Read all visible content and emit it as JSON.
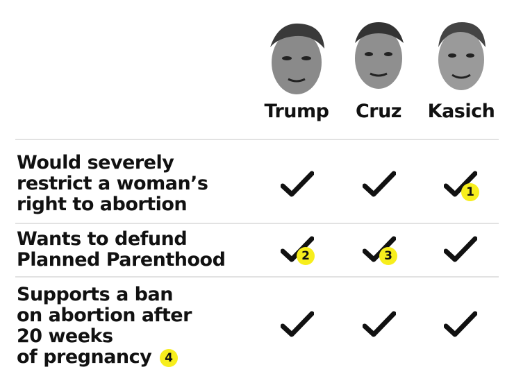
{
  "candidates": [
    {
      "name": "Trump"
    },
    {
      "name": "Cruz"
    },
    {
      "name": "Kasich"
    }
  ],
  "rows": [
    {
      "lines": [
        "Would severely",
        "restrict a woman’s",
        "right to abortion"
      ],
      "checks": [
        {
          "note": ""
        },
        {
          "note": ""
        },
        {
          "note": "1"
        }
      ]
    },
    {
      "lines": [
        "Wants to defund",
        "Planned Parenthood"
      ],
      "checks": [
        {
          "note": "2"
        },
        {
          "note": "3"
        },
        {
          "note": ""
        }
      ]
    },
    {
      "lines": [
        "Supports a ban",
        "on abortion after",
        "20 weeks",
        "of pregnancy"
      ],
      "label_note": "4",
      "checks": [
        {
          "note": ""
        },
        {
          "note": ""
        },
        {
          "note": ""
        }
      ]
    }
  ],
  "colors": {
    "check": "#111111",
    "note_badge": "#f7ee1c",
    "rule": "#e2e2e2"
  },
  "icons": {
    "face": "candidate-face-icon",
    "check": "checkmark-icon"
  }
}
